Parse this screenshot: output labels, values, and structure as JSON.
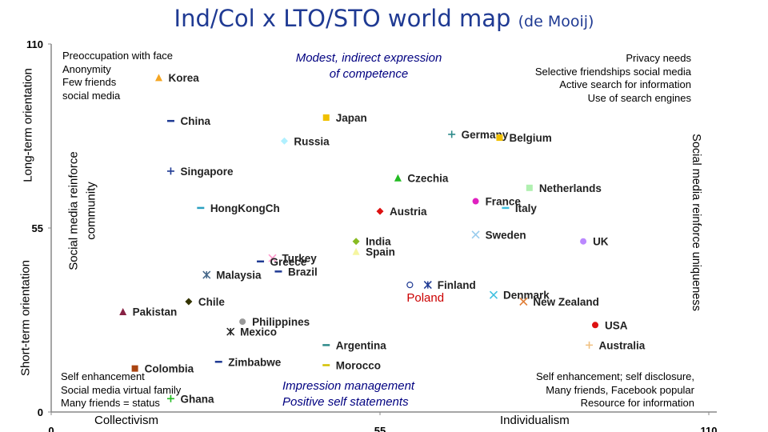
{
  "title": {
    "main": "Ind/Col x LTO/STO world map",
    "sub": "(de Mooij)"
  },
  "axis_labels": {
    "long_term": "Long-term orientation",
    "short_term": "Short-term orientation",
    "left_inner": "Social media reinforce community",
    "right_inner": "Social media reinforce uniqueness",
    "collectivism": "Collectivism",
    "individualism": "Individualism"
  },
  "quadrants": {
    "top_left": [
      "Preoccupation with face",
      "Anonymity",
      "Few friends",
      "social media"
    ],
    "top_center": [
      "Modest, indirect expression",
      "of competence"
    ],
    "top_right": [
      "Privacy needs",
      "Selective friendships social media",
      "Active search for information",
      "Use of search engines"
    ],
    "bottom_left": [
      "Self enhancement",
      "Social media virtual family",
      "Many friends = status"
    ],
    "bottom_center": [
      "Impression management",
      "Positive self statements"
    ],
    "bottom_right": [
      "Self enhancement; self disclosure,",
      "Many friends, Facebook popular",
      "Resource for information"
    ]
  },
  "chart_data": {
    "type": "scatter",
    "title": "Ind/Col x LTO/STO world map",
    "xlabel": "",
    "ylabel": "",
    "xlim": [
      0,
      110
    ],
    "ylim": [
      0,
      110
    ],
    "x_ticks": [
      "0",
      "55",
      "110"
    ],
    "y_ticks": [
      "0",
      "55",
      "110"
    ],
    "grid": false,
    "points": [
      {
        "label": "Korea",
        "x": 18,
        "y": 100,
        "marker": "triangle",
        "color": "#f5a623"
      },
      {
        "label": "China",
        "x": 20,
        "y": 87,
        "marker": "dash",
        "color": "#1f3a93"
      },
      {
        "label": "Japan",
        "x": 46,
        "y": 88,
        "marker": "square",
        "color": "#f0c000"
      },
      {
        "label": "Russia",
        "x": 39,
        "y": 81,
        "marker": "diamond",
        "color": "#b0f0ff"
      },
      {
        "label": "Germany",
        "x": 67,
        "y": 83,
        "marker": "plus",
        "color": "#2e8b8b"
      },
      {
        "label": "Belgium",
        "x": 75,
        "y": 82,
        "marker": "square",
        "color": "#f0c000"
      },
      {
        "label": "Singapore",
        "x": 20,
        "y": 72,
        "marker": "plus",
        "color": "#1f3a93"
      },
      {
        "label": "Czechia",
        "x": 58,
        "y": 70,
        "marker": "triangle",
        "color": "#22bb22"
      },
      {
        "label": "Netherlands",
        "x": 80,
        "y": 67,
        "marker": "square",
        "color": "#b0f0b0"
      },
      {
        "label": "HongKongCh",
        "x": 25,
        "y": 61,
        "marker": "dash",
        "color": "#2aa0c0"
      },
      {
        "label": "Austria",
        "x": 55,
        "y": 60,
        "marker": "diamond",
        "color": "#dd1111"
      },
      {
        "label": "France",
        "x": 71,
        "y": 63,
        "marker": "circle",
        "color": "#e020c0"
      },
      {
        "label": "Italy",
        "x": 76,
        "y": 61,
        "marker": "dash",
        "color": "#40c0e0"
      },
      {
        "label": "India",
        "x": 51,
        "y": 51,
        "marker": "diamond",
        "color": "#88bb22"
      },
      {
        "label": "Spain",
        "x": 51,
        "y": 48,
        "marker": "triangle",
        "color": "#f5f5a0"
      },
      {
        "label": "Sweden",
        "x": 71,
        "y": 53,
        "marker": "x",
        "color": "#99ccee"
      },
      {
        "label": "UK",
        "x": 89,
        "y": 51,
        "marker": "circle",
        "color": "#bb88ff"
      },
      {
        "label": "Turkey",
        "x": 37,
        "y": 46,
        "marker": "x",
        "color": "#ff99cc"
      },
      {
        "label": "Greece",
        "x": 35,
        "y": 45,
        "marker": "dash",
        "color": "#1f3a93"
      },
      {
        "label": "Brazil",
        "x": 38,
        "y": 42,
        "marker": "dash",
        "color": "#1f3a93"
      },
      {
        "label": "Malaysia",
        "x": 26,
        "y": 41,
        "marker": "asterisk",
        "color": "#446688"
      },
      {
        "label": "Finland",
        "x": 63,
        "y": 38,
        "marker": "asterisk",
        "color": "#1f3a93"
      },
      {
        "label": "Poland",
        "x": 60,
        "y": 38,
        "marker": "circle-open",
        "color": "#1f3a93"
      },
      {
        "label": "Denmark",
        "x": 74,
        "y": 35,
        "marker": "x",
        "color": "#40c0e0"
      },
      {
        "label": "New Zealand",
        "x": 79,
        "y": 33,
        "marker": "x",
        "color": "#e0803a"
      },
      {
        "label": "Chile",
        "x": 23,
        "y": 33,
        "marker": "diamond",
        "color": "#333300"
      },
      {
        "label": "Pakistan",
        "x": 12,
        "y": 30,
        "marker": "triangle",
        "color": "#882244"
      },
      {
        "label": "Philippines",
        "x": 32,
        "y": 27,
        "marker": "circle",
        "color": "#999999"
      },
      {
        "label": "Mexico",
        "x": 30,
        "y": 24,
        "marker": "asterisk",
        "color": "#222222"
      },
      {
        "label": "USA",
        "x": 91,
        "y": 26,
        "marker": "circle",
        "color": "#dd1111"
      },
      {
        "label": "Argentina",
        "x": 46,
        "y": 20,
        "marker": "dash",
        "color": "#2e8b8b"
      },
      {
        "label": "Australia",
        "x": 90,
        "y": 20,
        "marker": "plus",
        "color": "#f0c080"
      },
      {
        "label": "Zimbabwe",
        "x": 28,
        "y": 15,
        "marker": "dash",
        "color": "#1f3a93"
      },
      {
        "label": "Morocco",
        "x": 46,
        "y": 14,
        "marker": "dash",
        "color": "#d4c000"
      },
      {
        "label": "Colombia",
        "x": 14,
        "y": 13,
        "marker": "square",
        "color": "#aa4411"
      },
      {
        "label": "Ghana",
        "x": 20,
        "y": 4,
        "marker": "plus",
        "color": "#22bb22"
      }
    ]
  }
}
